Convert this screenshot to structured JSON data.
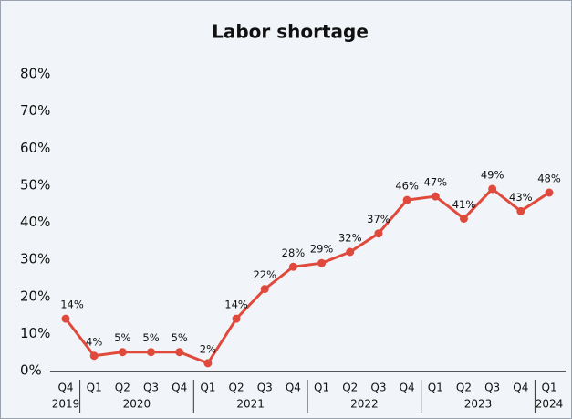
{
  "chart_data": {
    "type": "line",
    "title": "Labor shortage",
    "groups": [
      {
        "label": "2019",
        "categories": [
          "Q4"
        ]
      },
      {
        "label": "2020",
        "categories": [
          "Q1",
          "Q2",
          "Q3",
          "Q4"
        ]
      },
      {
        "label": "2021",
        "categories": [
          "Q1",
          "Q2",
          "Q3",
          "Q4"
        ]
      },
      {
        "label": "2022",
        "categories": [
          "Q1",
          "Q2",
          "Q3",
          "Q4"
        ]
      },
      {
        "label": "2023",
        "categories": [
          "Q1",
          "Q2",
          "Q3",
          "Q4"
        ]
      },
      {
        "label": "2024",
        "categories": [
          "Q1"
        ]
      }
    ],
    "values": [
      14,
      4,
      5,
      5,
      5,
      2,
      14,
      22,
      28,
      29,
      32,
      37,
      46,
      47,
      41,
      49,
      43,
      48
    ],
    "value_labels": [
      "14%",
      "4%",
      "5%",
      "5%",
      "5%",
      "2%",
      "14%",
      "22%",
      "28%",
      "29%",
      "32%",
      "37%",
      "46%",
      "47%",
      "41%",
      "49%",
      "43%",
      "48%"
    ],
    "color": "#e04a3c",
    "ylim": [
      0,
      80
    ],
    "yticks": [
      {
        "value": 0,
        "label": "0%"
      },
      {
        "value": 10,
        "label": "10%"
      },
      {
        "value": 20,
        "label": "20%"
      },
      {
        "value": 30,
        "label": "30%"
      },
      {
        "value": 40,
        "label": "40%"
      },
      {
        "value": 50,
        "label": "50%"
      },
      {
        "value": 60,
        "label": "60%"
      },
      {
        "value": 70,
        "label": "70%"
      },
      {
        "value": 80,
        "label": "80%"
      }
    ],
    "grid": false
  }
}
